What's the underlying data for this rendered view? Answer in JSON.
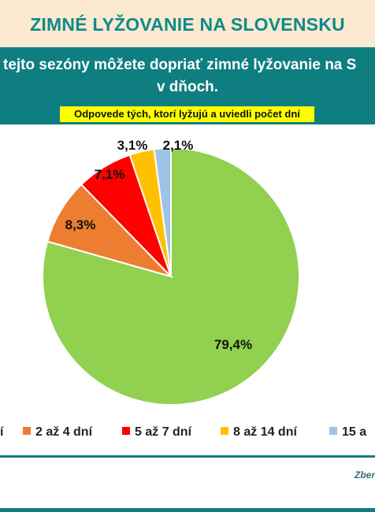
{
  "header": {
    "title": "ZIMNÉ LYŽOVANIE NA SLOVENSKU",
    "question_line1": "tejto sezóny  môžete dopriať zimné lyžovanie na S",
    "question_line2": "v dňoch.",
    "respondents_note": "Odpovede tých, ktorí lyžujú a uviedli počet dní"
  },
  "footer": {
    "source": "Zber"
  },
  "colors": {
    "header_bg": "#fbe9d0",
    "title_text": "#0e8a8a",
    "band": "#0f7e80",
    "note_bg": "#ffff00"
  },
  "chart_data": {
    "type": "pie",
    "slices": [
      {
        "label": "",
        "value": 79.4,
        "value_label": "79,4%",
        "color": "#92d050"
      },
      {
        "label": "2 až 4 dní",
        "value": 8.3,
        "value_label": "8,3%",
        "color": "#ed7d31"
      },
      {
        "label": "5 až 7 dní",
        "value": 7.1,
        "value_label": "7,1%",
        "color": "#ff0000"
      },
      {
        "label": "8 až 14 dní",
        "value": 3.1,
        "value_label": "3,1%",
        "color": "#ffc000"
      },
      {
        "label": "15 a",
        "value": 2.1,
        "value_label": "2,1%",
        "color": "#9dc3e6"
      }
    ],
    "legend_partial_first": "í",
    "legend_position": "bottom",
    "start_angle": "12 o'clock",
    "direction": "clockwise"
  }
}
